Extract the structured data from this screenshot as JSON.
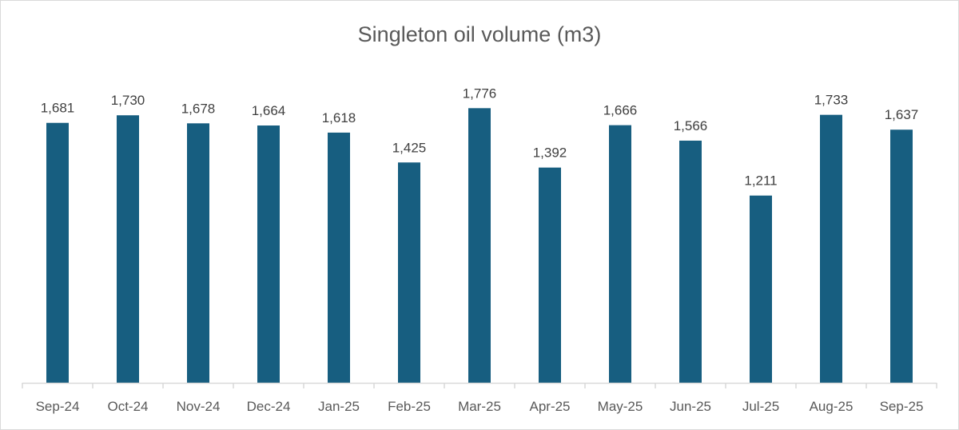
{
  "chart_data": {
    "type": "bar",
    "title": "Singleton oil volume (m3)",
    "xlabel": "",
    "ylabel": "",
    "categories": [
      "Sep-24",
      "Oct-24",
      "Nov-24",
      "Dec-24",
      "Jan-25",
      "Feb-25",
      "Mar-25",
      "Apr-25",
      "May-25",
      "Jun-25",
      "Jul-25",
      "Aug-25",
      "Sep-25"
    ],
    "values": [
      1681,
      1730,
      1678,
      1664,
      1618,
      1425,
      1776,
      1392,
      1666,
      1566,
      1211,
      1733,
      1637
    ],
    "data_labels": [
      "1,681",
      "1,730",
      "1,678",
      "1,664",
      "1,618",
      "1,425",
      "1,776",
      "1,392",
      "1,666",
      "1,566",
      "1,211",
      "1,733",
      "1,637"
    ],
    "ylim": [
      0,
      2000
    ],
    "grid": false,
    "legend": "none",
    "bar_color": "#175E80"
  }
}
